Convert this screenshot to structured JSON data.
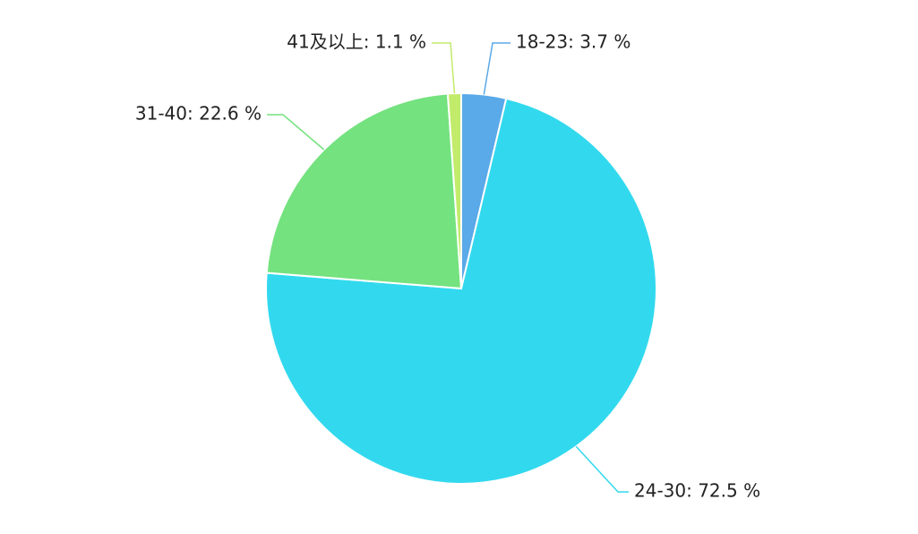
{
  "chart_data": {
    "type": "pie",
    "values": [
      3.7,
      72.5,
      22.6,
      1.1
    ],
    "value_labels": [
      "18-23: 3.7 %",
      "24-30: 72.5 %",
      "31-40: 22.6 %",
      "41及以上: 1.1 %"
    ],
    "colors": [
      "#5aa9e8",
      "#32d9ee",
      "#74e27f",
      "#c2eb6b"
    ]
  }
}
